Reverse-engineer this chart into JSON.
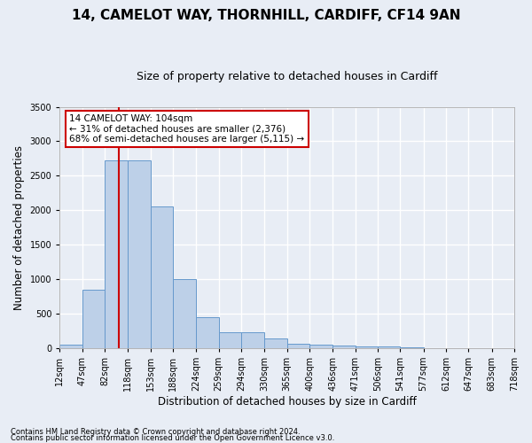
{
  "title": "14, CAMELOT WAY, THORNHILL, CARDIFF, CF14 9AN",
  "subtitle": "Size of property relative to detached houses in Cardiff",
  "xlabel": "Distribution of detached houses by size in Cardiff",
  "ylabel": "Number of detached properties",
  "bar_edges": [
    12,
    47,
    82,
    118,
    153,
    188,
    224,
    259,
    294,
    330,
    365,
    400,
    436,
    471,
    506,
    541,
    577,
    612,
    647,
    683,
    718
  ],
  "bar_heights": [
    55,
    850,
    2720,
    2720,
    2060,
    1005,
    455,
    230,
    230,
    135,
    65,
    55,
    40,
    30,
    25,
    15,
    5,
    5,
    3,
    2
  ],
  "bar_color": "#bdd0e8",
  "bar_edge_color": "#6699cc",
  "background_color": "#e8edf5",
  "grid_color": "#ffffff",
  "vline_x": 104,
  "vline_color": "#cc0000",
  "annotation_title": "14 CAMELOT WAY: 104sqm",
  "annotation_line1": "← 31% of detached houses are smaller (2,376)",
  "annotation_line2": "68% of semi-detached houses are larger (5,115) →",
  "annotation_box_color": "#cc0000",
  "annotation_box_bg": "#ffffff",
  "ylim": [
    0,
    3500
  ],
  "yticks": [
    0,
    500,
    1000,
    1500,
    2000,
    2500,
    3000,
    3500
  ],
  "tick_labels": [
    "12sqm",
    "47sqm",
    "82sqm",
    "118sqm",
    "153sqm",
    "188sqm",
    "224sqm",
    "259sqm",
    "294sqm",
    "330sqm",
    "365sqm",
    "400sqm",
    "436sqm",
    "471sqm",
    "506sqm",
    "541sqm",
    "577sqm",
    "612sqm",
    "647sqm",
    "683sqm",
    "718sqm"
  ],
  "footnote1": "Contains HM Land Registry data © Crown copyright and database right 2024.",
  "footnote2": "Contains public sector information licensed under the Open Government Licence v3.0.",
  "title_fontsize": 11,
  "subtitle_fontsize": 9,
  "axis_label_fontsize": 8.5,
  "tick_fontsize": 7,
  "annot_fontsize": 7.5,
  "footnote_fontsize": 6
}
